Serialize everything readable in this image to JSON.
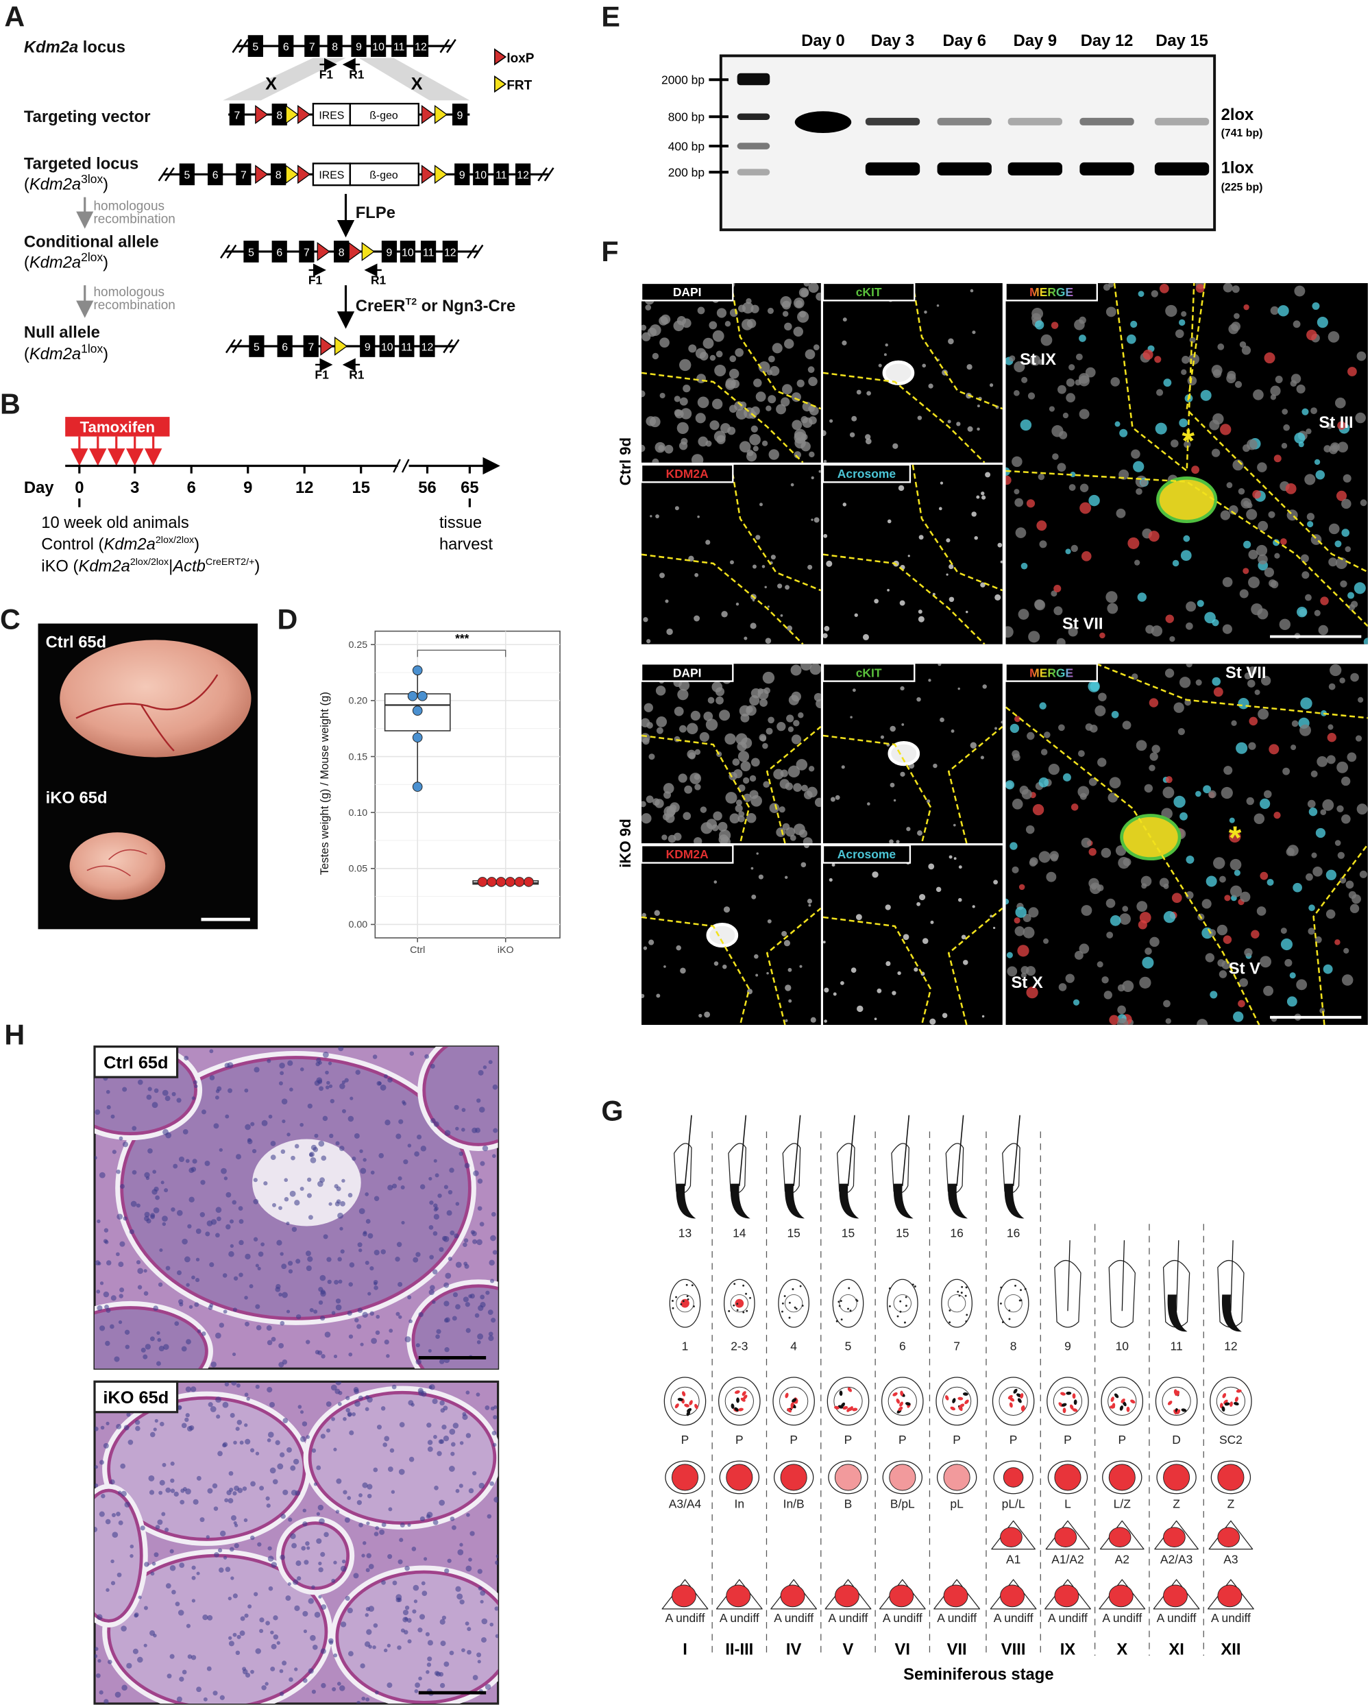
{
  "panel_letters": {
    "a": "A",
    "b": "B",
    "c": "C",
    "d": "D",
    "e": "E",
    "f": "F",
    "g": "G",
    "h": "H"
  },
  "panel_a": {
    "locus_label_italic": "Kdm2a",
    "locus_label_rest": " locus",
    "vector_label": "Targeting vector",
    "targeted_label": "Targeted locus",
    "conditional_label": "Conditional allele",
    "null_label": "Null allele",
    "gene_italic": "Kdm2a",
    "sup_3lox": "3lox",
    "sup_2lox": "2lox",
    "sup_1lox": "1lox",
    "open_paren": "(",
    "close_paren": ")",
    "homologous": "homologous",
    "recombination": "recombination",
    "flpe": "FLPe",
    "cre_main": "CreER",
    "cre_sup": "T2",
    "cre_rest": " or Ngn3-Cre",
    "ires": "IRES",
    "bgeo": "ß-geo",
    "f1": "F1",
    "r1": "R1",
    "cross": "X",
    "legend_loxp": "loxP",
    "legend_frt": "FRT",
    "exons_locus": [
      "5",
      "6",
      "7",
      "8",
      "9",
      "10",
      "11",
      "12"
    ],
    "exons_vector": [
      "7",
      "8",
      "9"
    ],
    "exons_targeted": [
      "5",
      "6",
      "7",
      "8",
      "9",
      "10",
      "11",
      "12"
    ],
    "exons_conditional": [
      "5",
      "6",
      "7",
      "8",
      "9",
      "10",
      "11",
      "12"
    ],
    "exons_null": [
      "5",
      "6",
      "7",
      "9",
      "10",
      "11",
      "12"
    ],
    "colors": {
      "loxp": "#d32f2f",
      "frt": "#f5e11a"
    }
  },
  "panel_b": {
    "tamoxifen": "Tamoxifen",
    "day_label": "Day",
    "days": [
      "0",
      "3",
      "6",
      "9",
      "12",
      "15",
      "56",
      "65"
    ],
    "animals": "10 week old animals",
    "control_prefix": "Control (",
    "control_gene": "Kdm2a",
    "control_sup": "2lox/2lox",
    "control_suffix": ")",
    "iko_prefix": "iKO (",
    "iko_gene": "Kdm2a",
    "iko_sup": "2lox/2lox",
    "iko_sep": "|",
    "iko_gene2": "Actb",
    "iko_sup2": "CreERT2/+",
    "iko_suffix": ")",
    "harvest_1": "tissue",
    "harvest_2": "harvest",
    "color": "#e3262b"
  },
  "panel_c": {
    "ctrl": "Ctrl 65d",
    "iko": "iKO 65d"
  },
  "chart_data": {
    "type": "box",
    "categories": [
      "Ctrl",
      "iKO"
    ],
    "ylabel": "Testes weight (g) / Mouse weight (g)",
    "ylim": [
      -0.012,
      0.262
    ],
    "yticks": [
      "0.00",
      "0.05",
      "0.10",
      "0.15",
      "0.20",
      "0.25"
    ],
    "grid": true,
    "significance": "***",
    "series": [
      {
        "category": "Ctrl",
        "color": "#4a90d0",
        "points": [
          0.227,
          0.204,
          0.204,
          0.191,
          0.167,
          0.123
        ],
        "box": {
          "q1": 0.173,
          "median": 0.196,
          "q3": 0.206,
          "whisker_low": 0.123,
          "whisker_high": 0.227
        }
      },
      {
        "category": "iKO",
        "color": "#d62728",
        "points": [
          0.038,
          0.038,
          0.038,
          0.038,
          0.038,
          0.038
        ],
        "box": {
          "q1": 0.036,
          "median": 0.037,
          "q3": 0.039,
          "whisker_low": 0.036,
          "whisker_high": 0.039
        }
      }
    ]
  },
  "panel_e": {
    "lanes": [
      "Day 0",
      "Day 3",
      "Day 6",
      "Day 9",
      "Day 12",
      "Day 15"
    ],
    "ladder": [
      "2000 bp",
      "800 bp",
      "400 bp",
      "200 bp"
    ],
    "band_2lox": "2lox",
    "band_2lox_size": "(741 bp)",
    "band_1lox": "1lox",
    "band_1lox_size": "(225 bp)",
    "intensity_2lox": [
      1.0,
      0.75,
      0.45,
      0.3,
      0.5,
      0.3
    ],
    "intensity_1lox": [
      0,
      1,
      1,
      1,
      1,
      1
    ]
  },
  "panel_f": {
    "ctrl_side": "Ctrl 9d",
    "iko_side": "iKO 9d",
    "channels": [
      {
        "label": "DAPI",
        "color": "#ffffff"
      },
      {
        "label": "cKIT",
        "color": "#5ac13c"
      },
      {
        "label": "KDM2A",
        "color": "#e33030"
      },
      {
        "label": "Acrosome",
        "color": "#4cc7d8"
      }
    ],
    "merge": "MERGE",
    "ctrl_stages": [
      "St IX",
      "St III",
      "St VII"
    ],
    "iko_stages": [
      "St VII",
      "St X",
      "St V"
    ],
    "asterisk": "*"
  },
  "panel_g": {
    "row1": [
      "13",
      "14",
      "15",
      "15",
      "15",
      "16",
      "16"
    ],
    "row2": [
      "1",
      "2-3",
      "4",
      "5",
      "6",
      "7",
      "8",
      "9",
      "10",
      "11",
      "12"
    ],
    "row3": [
      "P",
      "P",
      "P",
      "P",
      "P",
      "P",
      "P",
      "P",
      "P",
      "D",
      "SC2"
    ],
    "row4": [
      "A3/A4",
      "In",
      "In/B",
      "B",
      "B/pL",
      "pL",
      "pL/L",
      "L",
      "L/Z",
      "Z",
      "Z"
    ],
    "row5": [
      "A1",
      "A1/A2",
      "A2",
      "A2/A3",
      "A3"
    ],
    "row6": [
      "A undiff",
      "A undiff",
      "A undiff",
      "A undiff",
      "A undiff",
      "A undiff",
      "A undiff",
      "A undiff",
      "A undiff",
      "A undiff",
      "A undiff"
    ],
    "stages": [
      "I",
      "II-III",
      "IV",
      "V",
      "VI",
      "VII",
      "VIII",
      "IX",
      "X",
      "XI",
      "XII"
    ],
    "xlabel": "Seminiferous stage",
    "red": "#e8343a"
  },
  "panel_h": {
    "ctrl": "Ctrl 65d",
    "iko": "iKO 65d"
  }
}
